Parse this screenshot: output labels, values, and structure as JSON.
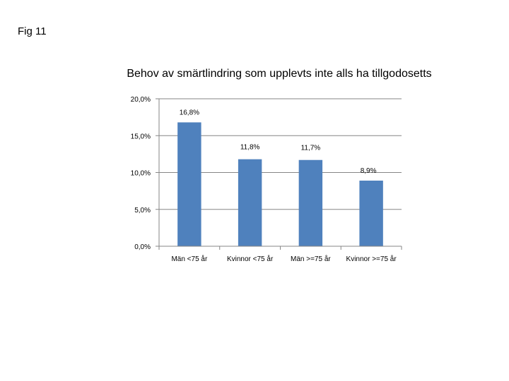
{
  "page": {
    "fig_label": "Fig 11"
  },
  "chart_data": {
    "type": "bar",
    "title": "Behov av smärtlindring som upplevts inte alls ha  tillgodosetts",
    "xlabel": "",
    "ylabel": "",
    "categories": [
      "Män <75 år",
      "Kvinnor <75 år",
      "Män >=75 år",
      "Kvinnor >=75 år"
    ],
    "values": [
      16.8,
      11.8,
      11.7,
      8.9
    ],
    "data_labels": [
      "16,8%",
      "11,8%",
      "11,7%",
      "8,9%"
    ],
    "ylim": [
      0,
      20
    ],
    "yticks": [
      0,
      5,
      10,
      15,
      20
    ],
    "ytick_labels": [
      "0,0%",
      "5,0%",
      "10,0%",
      "15,0%",
      "20,0%"
    ],
    "grid": true,
    "legend": "none",
    "colors": {
      "bar": "#4F81BD",
      "grid": "#868686",
      "axis": "#868686"
    }
  }
}
